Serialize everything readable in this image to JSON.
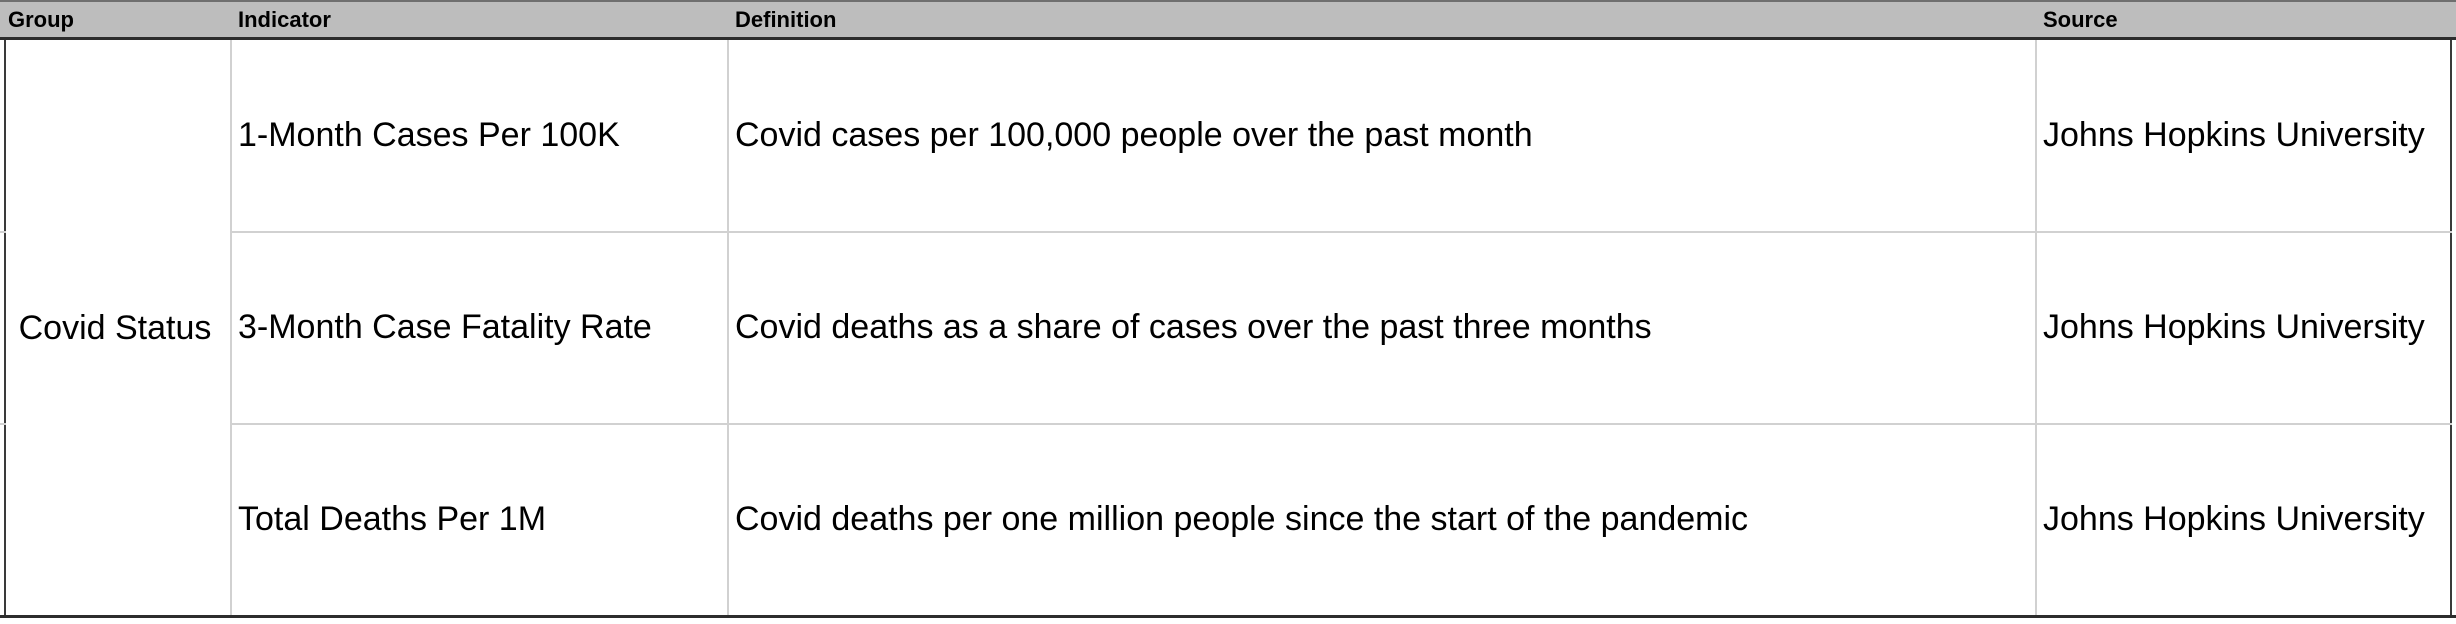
{
  "table": {
    "headers": [
      "Group",
      "Indicator",
      "Definition",
      "Source"
    ],
    "group": "Covid Status",
    "rows": [
      {
        "indicator": "1-Month Cases Per 100K",
        "definition": "Covid cases per 100,000 people over the past month",
        "source": "Johns Hopkins University"
      },
      {
        "indicator": "3-Month Case Fatality Rate",
        "definition": "Covid deaths as a share of cases over the past three months",
        "source": "Johns Hopkins University"
      },
      {
        "indicator": "Total Deaths Per 1M",
        "definition": "Covid deaths per one million people since the start of the pandemic",
        "source": "Johns Hopkins University"
      }
    ]
  },
  "colors": {
    "header_bg": "#bdbdbd",
    "grid_line": "#d1d1d1",
    "border_dark": "#2d2d2d"
  }
}
